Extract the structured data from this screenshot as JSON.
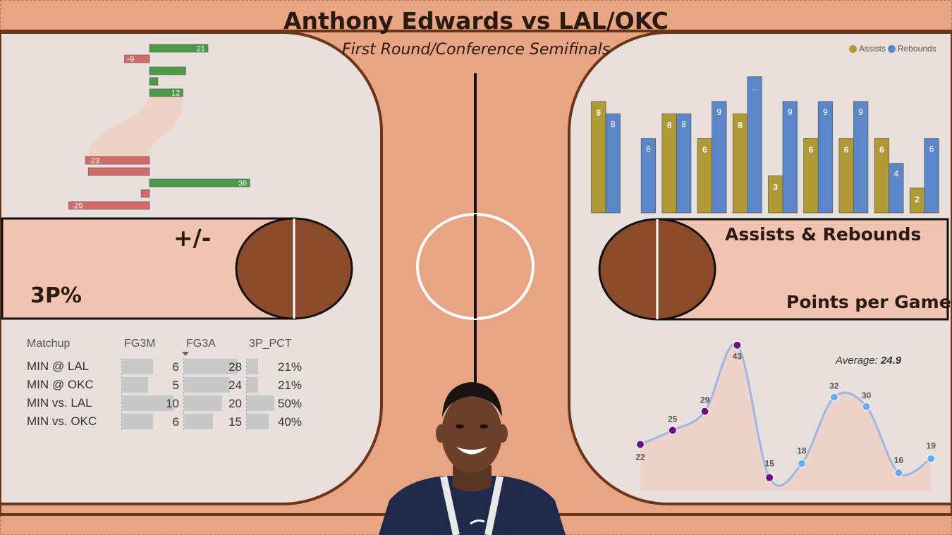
{
  "header": {
    "title": "Anthony Edwards vs LAL/OKC",
    "subtitle": "First Round/Conference Semifinals"
  },
  "labels": {
    "plus_minus": "+/-",
    "three_pct": "3P%",
    "assists_rebounds": "Assists & Rebounds",
    "points_per_game": "Points per Game"
  },
  "colors": {
    "court_bg": "#e8a584",
    "panel_bg": "#e8e0dc",
    "court_line": "#6b3517",
    "ball": "#8b4a2a",
    "positive": "#4a9a4a",
    "negative": "#d26a6a",
    "assists": "#b09a36",
    "rebounds": "#5b87c8",
    "line": "#9fb5e5",
    "area": "#f0d0c2",
    "point_high": "#6a0f7a",
    "point_low": "#6aaaf0"
  },
  "chart_data": [
    {
      "type": "bar",
      "orientation": "horizontal",
      "name": "plus-minus",
      "values": [
        21,
        -9,
        13,
        3,
        12,
        -23,
        -22,
        36,
        -3,
        -29
      ],
      "data_labels": [
        "21",
        "-9",
        "",
        "",
        "12",
        "-23",
        "",
        "36",
        "",
        "-29"
      ],
      "xlim": [
        -30,
        37
      ]
    },
    {
      "type": "bar",
      "name": "assists-rebounds",
      "series": [
        {
          "name": "Assists",
          "values": [
            9,
            0,
            8,
            6,
            8,
            3,
            6,
            6,
            6,
            2
          ],
          "labels": [
            "9",
            "",
            "8",
            "6",
            "8",
            "3",
            "6",
            "6",
            "6",
            "2"
          ]
        },
        {
          "name": "Rebounds",
          "values": [
            8,
            6,
            8,
            9,
            11,
            9,
            9,
            9,
            4,
            6
          ],
          "labels": [
            "8",
            "6",
            "8",
            "9",
            "...",
            "9",
            "9",
            "9",
            "4",
            "6"
          ]
        }
      ],
      "ylim": [
        0,
        11.5
      ],
      "legend": "top-right"
    },
    {
      "type": "table",
      "name": "3p-table",
      "columns": [
        "Matchup",
        "FG3M",
        "FG3A",
        "3P_PCT"
      ],
      "rows": [
        {
          "matchup": "MIN @ LAL",
          "fg3m": 6,
          "fg3a": 28,
          "pct_value": 0.21,
          "pct": "21%"
        },
        {
          "matchup": "MIN @ OKC",
          "fg3m": 5,
          "fg3a": 24,
          "pct_value": 0.21,
          "pct": "21%"
        },
        {
          "matchup": "MIN vs. LAL",
          "fg3m": 10,
          "fg3a": 20,
          "pct_value": 0.5,
          "pct": "50%"
        },
        {
          "matchup": "MIN vs. OKC",
          "fg3m": 6,
          "fg3a": 15,
          "pct_value": 0.4,
          "pct": "40%"
        }
      ],
      "sort": "FG3A descending"
    },
    {
      "type": "line",
      "name": "points-per-game",
      "values": [
        22,
        25,
        29,
        43,
        15,
        18,
        32,
        30,
        16,
        19
      ],
      "point_groups": [
        "high",
        "high",
        "high",
        "high",
        "high",
        "low",
        "low",
        "low",
        "low",
        "low"
      ],
      "ylim": [
        13,
        44
      ],
      "average_label": "Average:",
      "average_value": "24.9"
    }
  ]
}
